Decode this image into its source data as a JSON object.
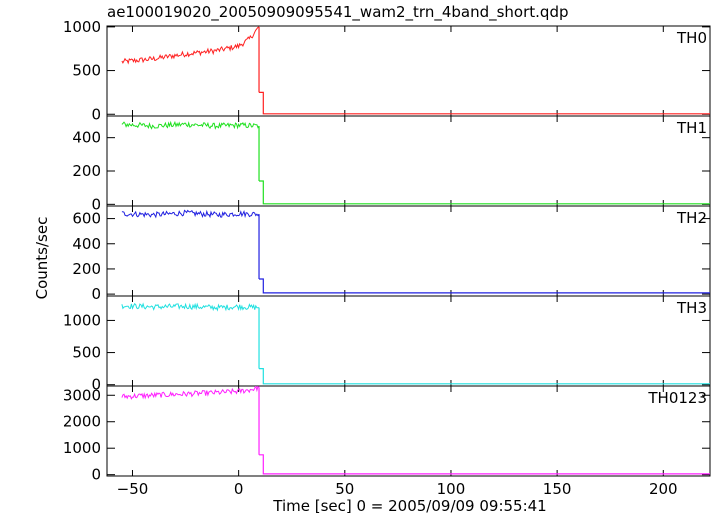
{
  "chart_data": {
    "type": "line",
    "title": "ae100019020_20050909095541_wam2_trn_4band_short.qdp",
    "xlabel": "Time [sec] 0 = 2005/09/09 09:55:41",
    "ylabel": "Counts/sec",
    "xlim": [
      -62,
      222
    ],
    "x_ticks": [
      -50,
      0,
      50,
      100,
      150,
      200
    ],
    "x_tick_labels": [
      "−50",
      "0",
      "50",
      "100",
      "150",
      "200"
    ],
    "grid": false,
    "panels": [
      {
        "label": "TH0",
        "color": "#ff2020",
        "ylim": [
          -20,
          1010
        ],
        "y_ticks": [
          0,
          500,
          1000
        ],
        "series": [
          {
            "x": [
              -55,
              -40,
              -25,
              -10,
              0,
              5,
              8,
              9.6
            ],
            "y": [
              600,
              635,
              690,
              730,
              780,
              860,
              950,
              1000
            ]
          },
          {
            "x": [
              9.6,
              11.6,
              11.6,
              222
            ],
            "y": [
              250,
              250,
              5,
              5
            ]
          }
        ]
      },
      {
        "label": "TH1",
        "color": "#20e020",
        "ylim": [
          -10,
          530
        ],
        "y_ticks": [
          0,
          200,
          400
        ],
        "series": [
          {
            "x": [
              -55,
              -40,
              -25,
              -10,
              0,
              9.6
            ],
            "y": [
              480,
              470,
              480,
              470,
              475,
              470
            ]
          },
          {
            "x": [
              9.6,
              11.6,
              11.6,
              222
            ],
            "y": [
              140,
              140,
              3,
              3
            ]
          }
        ]
      },
      {
        "label": "TH2",
        "color": "#2020e0",
        "ylim": [
          -15,
          700
        ],
        "y_ticks": [
          0,
          200,
          400,
          600
        ],
        "series": [
          {
            "x": [
              -55,
              -40,
              -25,
              -10,
              0,
              9.6
            ],
            "y": [
              640,
              630,
              645,
              630,
              640,
              635
            ]
          },
          {
            "x": [
              9.6,
              11.6,
              11.6,
              222
            ],
            "y": [
              120,
              120,
              10,
              10
            ]
          }
        ]
      },
      {
        "label": "TH3",
        "color": "#20e0e0",
        "ylim": [
          -20,
          1380
        ],
        "y_ticks": [
          0,
          500,
          1000
        ],
        "series": [
          {
            "x": [
              -55,
              -40,
              -25,
              -10,
              0,
              9.6
            ],
            "y": [
              1230,
              1210,
              1220,
              1200,
              1215,
              1200
            ]
          },
          {
            "x": [
              9.6,
              11.6,
              11.6,
              222
            ],
            "y": [
              250,
              250,
              15,
              15
            ]
          }
        ]
      },
      {
        "label": "TH0123",
        "color": "#ff20ff",
        "ylim": [
          -50,
          3350
        ],
        "y_ticks": [
          0,
          1000,
          2000,
          3000
        ],
        "series": [
          {
            "x": [
              -55,
              -40,
              -25,
              -10,
              0,
              5,
              9.6
            ],
            "y": [
              2950,
              3000,
              3050,
              3100,
              3150,
              3200,
              3300
            ]
          },
          {
            "x": [
              9.6,
              11.6,
              11.6,
              222
            ],
            "y": [
              750,
              750,
              30,
              30
            ]
          }
        ]
      }
    ]
  }
}
